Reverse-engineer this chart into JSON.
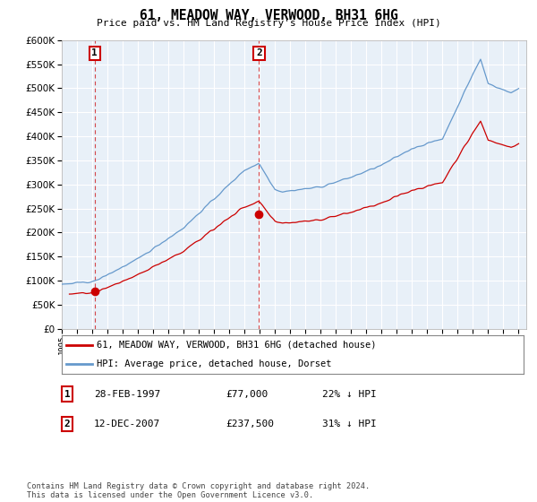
{
  "title": "61, MEADOW WAY, VERWOOD, BH31 6HG",
  "subtitle": "Price paid vs. HM Land Registry's House Price Index (HPI)",
  "legend_line1": "61, MEADOW WAY, VERWOOD, BH31 6HG (detached house)",
  "legend_line2": "HPI: Average price, detached house, Dorset",
  "footnote": "Contains HM Land Registry data © Crown copyright and database right 2024.\nThis data is licensed under the Open Government Licence v3.0.",
  "sale1_date": 1997.16,
  "sale1_price": 77000,
  "sale1_label": "28-FEB-1997",
  "sale1_amount": "£77,000",
  "sale1_pct": "22% ↓ HPI",
  "sale2_date": 2007.95,
  "sale2_price": 237500,
  "sale2_label": "12-DEC-2007",
  "sale2_amount": "£237,500",
  "sale2_pct": "31% ↓ HPI",
  "ylim": [
    0,
    600000
  ],
  "xlim_start": 1995.0,
  "xlim_end": 2025.5,
  "property_line_color": "#cc0000",
  "hpi_line_color": "#6699cc",
  "plot_bg_color": "#e8f0f8",
  "grid_color": "#ffffff",
  "vline_color": "#cc0000"
}
